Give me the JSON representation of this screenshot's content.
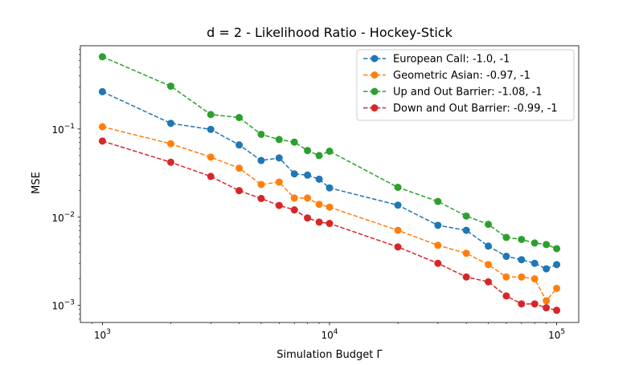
{
  "chart_data": {
    "type": "line",
    "title": "d = 2 - Likelihood Ratio - Hockey-Stick",
    "xlabel": "Simulation Budget Γ",
    "ylabel": "MSE",
    "xscale": "log",
    "yscale": "log",
    "xlim": [
      800,
      125000
    ],
    "ylim": [
      0.00064,
      0.88
    ],
    "grid": false,
    "legend_position": "top-right",
    "x_ticks": [
      {
        "value": 1000,
        "base": "10",
        "exp": "3"
      },
      {
        "value": 10000,
        "base": "10",
        "exp": "4"
      },
      {
        "value": 100000,
        "base": "10",
        "exp": "5"
      }
    ],
    "y_ticks": [
      {
        "value": 0.001,
        "base": "10",
        "exp": "−3"
      },
      {
        "value": 0.01,
        "base": "10",
        "exp": "−2"
      },
      {
        "value": 0.1,
        "base": "10",
        "exp": "−1"
      }
    ],
    "x": [
      1000,
      2000,
      3000,
      4000,
      5000,
      6000,
      7000,
      8000,
      9000,
      10000,
      20000,
      30000,
      40000,
      50000,
      60000,
      70000,
      80000,
      90000,
      100000
    ],
    "series": [
      {
        "name": "European Call: -1.0, -1",
        "color": "#1f77b4",
        "values": [
          0.265,
          0.116,
          0.099,
          0.066,
          0.044,
          0.047,
          0.031,
          0.03,
          0.027,
          0.0215,
          0.0137,
          0.0081,
          0.0071,
          0.0047,
          0.0036,
          0.0033,
          0.003,
          0.0026,
          0.0029
        ]
      },
      {
        "name": "Geometric Asian: -0.97, -1",
        "color": "#ff7f0e",
        "values": [
          0.106,
          0.068,
          0.048,
          0.036,
          0.0235,
          0.025,
          0.0165,
          0.0165,
          0.014,
          0.013,
          0.0071,
          0.0048,
          0.0039,
          0.0029,
          0.0021,
          0.0021,
          0.002,
          0.00113,
          0.00156
        ]
      },
      {
        "name": "Up and Out Barrier: -1.08, -1",
        "color": "#2ca02c",
        "values": [
          0.66,
          0.306,
          0.146,
          0.135,
          0.087,
          0.076,
          0.071,
          0.057,
          0.05,
          0.056,
          0.0218,
          0.0151,
          0.0103,
          0.0083,
          0.0059,
          0.0056,
          0.0051,
          0.0049,
          0.0044
        ]
      },
      {
        "name": "Down and Out Barrier: -0.99, -1",
        "color": "#d62728",
        "values": [
          0.073,
          0.042,
          0.029,
          0.02,
          0.0163,
          0.0136,
          0.0121,
          0.0098,
          0.0088,
          0.0085,
          0.0046,
          0.003,
          0.0021,
          0.00185,
          0.00128,
          0.00104,
          0.00104,
          0.00094,
          0.00088
        ]
      }
    ]
  }
}
